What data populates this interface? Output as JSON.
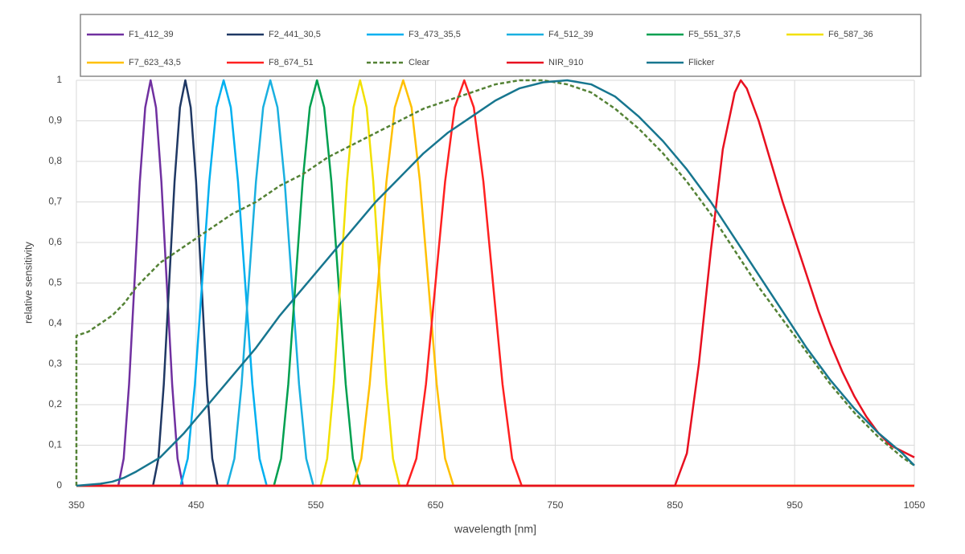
{
  "chart_data": {
    "type": "line",
    "x_label": "wavelength [nm]",
    "y_label": "relative sensitivity",
    "xlim": [
      350,
      1050
    ],
    "xticks": [
      350,
      450,
      550,
      650,
      750,
      850,
      950,
      1050
    ],
    "ylim": [
      0,
      1
    ],
    "yticks": [
      0,
      {
        "value": 0.1,
        "label": "0,1"
      },
      {
        "value": 0.2,
        "label": "0,2"
      },
      {
        "value": 0.3,
        "label": "0,3"
      },
      {
        "value": 0.4,
        "label": "0,4"
      },
      {
        "value": 0.5,
        "label": "0,5"
      },
      {
        "value": 0.6,
        "label": "0,6"
      },
      {
        "value": 0.7,
        "label": "0,7"
      },
      {
        "value": 0.8,
        "label": "0,8"
      },
      {
        "value": 0.9,
        "label": "0,9"
      },
      1
    ],
    "grid": true,
    "legend": "top",
    "series": [
      {
        "name": "F1_412_39",
        "color": "#7030a0",
        "style": "solid",
        "x": [
          350,
          385,
          389.5,
          394,
          398.5,
          403,
          407.5,
          412,
          416.5,
          421,
          425.5,
          430,
          434.5,
          439,
          1050
        ],
        "values": [
          0,
          0,
          0.067,
          0.25,
          0.5,
          0.75,
          0.933,
          1,
          0.933,
          0.75,
          0.5,
          0.25,
          0.067,
          0,
          0
        ]
      },
      {
        "name": "F2_441_30,5",
        "color": "#1f3864",
        "style": "solid",
        "x": [
          350,
          414,
          418.5,
          423,
          427.5,
          432,
          436.5,
          441,
          445.5,
          450,
          454.5,
          459,
          463.5,
          468,
          1050
        ],
        "values": [
          0,
          0,
          0.067,
          0.25,
          0.5,
          0.75,
          0.933,
          1,
          0.933,
          0.75,
          0.5,
          0.25,
          0.067,
          0,
          0
        ]
      },
      {
        "name": "F3_473_35,5",
        "color": "#00b0f0",
        "style": "solid",
        "x": [
          350,
          437,
          443,
          449,
          455,
          461,
          467,
          473,
          479,
          485,
          491,
          497,
          503,
          509,
          1050
        ],
        "values": [
          0,
          0,
          0.067,
          0.25,
          0.5,
          0.75,
          0.933,
          1,
          0.933,
          0.75,
          0.5,
          0.25,
          0.067,
          0,
          0
        ]
      },
      {
        "name": "F4_512_39",
        "color": "#1ab0e0",
        "style": "solid",
        "x": [
          350,
          476,
          482,
          488,
          494,
          500,
          506,
          512,
          518,
          524,
          530,
          536,
          542,
          548,
          1050
        ],
        "values": [
          0,
          0,
          0.067,
          0.25,
          0.5,
          0.75,
          0.933,
          1,
          0.933,
          0.75,
          0.5,
          0.25,
          0.067,
          0,
          0
        ]
      },
      {
        "name": "F5_551_37,5",
        "color": "#00a050",
        "style": "solid",
        "x": [
          350,
          515,
          521,
          527,
          533,
          539,
          545,
          551,
          557,
          563,
          569,
          575,
          581,
          587,
          1050
        ],
        "values": [
          0,
          0,
          0.067,
          0.25,
          0.5,
          0.75,
          0.933,
          1,
          0.933,
          0.75,
          0.5,
          0.25,
          0.067,
          0,
          0
        ]
      },
      {
        "name": "F6_587_36",
        "color": "#f2e000",
        "style": "solid",
        "x": [
          350,
          554,
          559.5,
          565,
          570.5,
          576,
          581.5,
          587,
          592.5,
          598,
          603.5,
          609,
          614.5,
          620,
          1050
        ],
        "values": [
          0,
          0,
          0.067,
          0.25,
          0.5,
          0.75,
          0.933,
          1,
          0.933,
          0.75,
          0.5,
          0.25,
          0.067,
          0,
          0
        ]
      },
      {
        "name": "F7_623_43,5",
        "color": "#ffc000",
        "style": "solid",
        "x": [
          350,
          581,
          588,
          595,
          602,
          609,
          616,
          623,
          630,
          637,
          644,
          651,
          658,
          665,
          1050
        ],
        "values": [
          0,
          0,
          0.067,
          0.25,
          0.5,
          0.75,
          0.933,
          1,
          0.933,
          0.75,
          0.5,
          0.25,
          0.067,
          0,
          0
        ]
      },
      {
        "name": "F8_674_51",
        "color": "#ff2020",
        "style": "solid",
        "x": [
          350,
          626,
          634,
          642,
          650,
          658,
          666,
          674,
          682,
          690,
          698,
          706,
          714,
          722,
          1050
        ],
        "values": [
          0,
          0,
          0.067,
          0.25,
          0.5,
          0.75,
          0.933,
          1,
          0.933,
          0.75,
          0.5,
          0.25,
          0.067,
          0,
          0
        ]
      },
      {
        "name": "Clear",
        "color": "#548235",
        "style": "dashed",
        "x": [
          350,
          350,
          360,
          370,
          380,
          390,
          400,
          410,
          420,
          440,
          460,
          480,
          500,
          520,
          540,
          560,
          580,
          600,
          620,
          640,
          660,
          680,
          700,
          720,
          740,
          760,
          780,
          800,
          820,
          840,
          860,
          880,
          900,
          920,
          940,
          960,
          980,
          1000,
          1020,
          1040,
          1050
        ],
        "values": [
          0,
          0.37,
          0.38,
          0.4,
          0.42,
          0.45,
          0.49,
          0.52,
          0.55,
          0.59,
          0.63,
          0.67,
          0.7,
          0.74,
          0.77,
          0.81,
          0.84,
          0.87,
          0.9,
          0.93,
          0.95,
          0.97,
          0.99,
          1,
          1,
          0.99,
          0.97,
          0.93,
          0.88,
          0.82,
          0.75,
          0.67,
          0.58,
          0.49,
          0.41,
          0.33,
          0.25,
          0.18,
          0.12,
          0.07,
          0.05
        ]
      },
      {
        "name": "NIR_910",
        "color": "#e81020",
        "style": "solid",
        "x": [
          350,
          850,
          860,
          870,
          880,
          890,
          900,
          905,
          910,
          920,
          930,
          940,
          950,
          960,
          970,
          980,
          990,
          1000,
          1010,
          1020,
          1030,
          1040,
          1050
        ],
        "values": [
          0,
          0,
          0.08,
          0.3,
          0.58,
          0.83,
          0.97,
          1,
          0.98,
          0.9,
          0.8,
          0.7,
          0.61,
          0.52,
          0.43,
          0.35,
          0.28,
          0.22,
          0.17,
          0.13,
          0.1,
          0.085,
          0.07
        ]
      },
      {
        "name": "Flicker",
        "color": "#17768f",
        "style": "solid",
        "x": [
          350,
          370,
          380,
          390,
          400,
          420,
          440,
          460,
          480,
          500,
          520,
          540,
          560,
          580,
          600,
          620,
          640,
          660,
          680,
          700,
          720,
          740,
          760,
          780,
          800,
          820,
          840,
          860,
          880,
          900,
          920,
          940,
          960,
          980,
          1000,
          1020,
          1040,
          1050
        ],
        "values": [
          0,
          0.005,
          0.01,
          0.02,
          0.035,
          0.07,
          0.13,
          0.2,
          0.27,
          0.34,
          0.42,
          0.49,
          0.56,
          0.63,
          0.7,
          0.76,
          0.82,
          0.87,
          0.91,
          0.95,
          0.98,
          0.995,
          1,
          0.99,
          0.96,
          0.91,
          0.85,
          0.78,
          0.7,
          0.61,
          0.52,
          0.43,
          0.34,
          0.26,
          0.19,
          0.13,
          0.08,
          0.05
        ]
      }
    ]
  }
}
